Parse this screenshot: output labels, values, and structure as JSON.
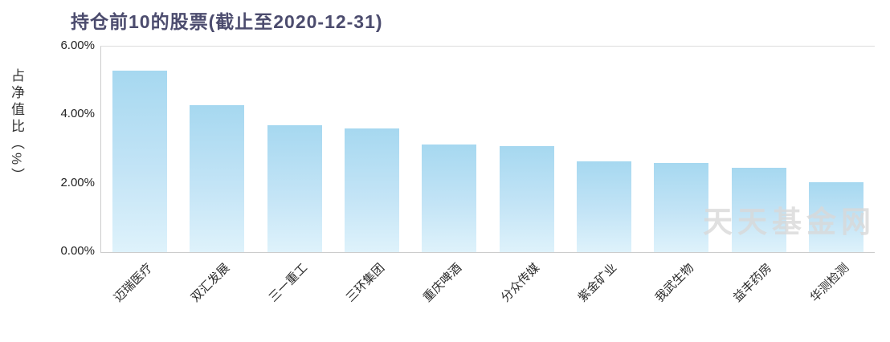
{
  "title": "持仓前10的股票(截止至2020-12-31)",
  "y_axis_title": "占净值比（%）",
  "watermark": "天天基金网",
  "chart_data": {
    "type": "bar",
    "title": "持仓前10的股票(截止至2020-12-31)",
    "xlabel": "",
    "ylabel": "占净值比（%）",
    "categories": [
      "迈瑞医疗",
      "双汇发展",
      "三一重工",
      "三环集团",
      "重庆啤酒",
      "分众传媒",
      "紫金矿业",
      "我武生物",
      "益丰药房",
      "华测检测"
    ],
    "values": [
      5.3,
      4.3,
      3.7,
      3.6,
      3.15,
      3.1,
      2.65,
      2.6,
      2.45,
      2.05
    ],
    "ylim": [
      0,
      6
    ],
    "yticks": [
      "6.00%",
      "4.00%",
      "2.00%",
      "0.00%"
    ],
    "ytick_values": [
      6,
      4,
      2,
      0
    ],
    "grid": "off",
    "legend": "none",
    "bar_color_top": "#a6d8f0",
    "bar_color_bottom": "#def2fb",
    "title_color": "#4c4c6e",
    "watermark_color": "#d9d9d9"
  }
}
